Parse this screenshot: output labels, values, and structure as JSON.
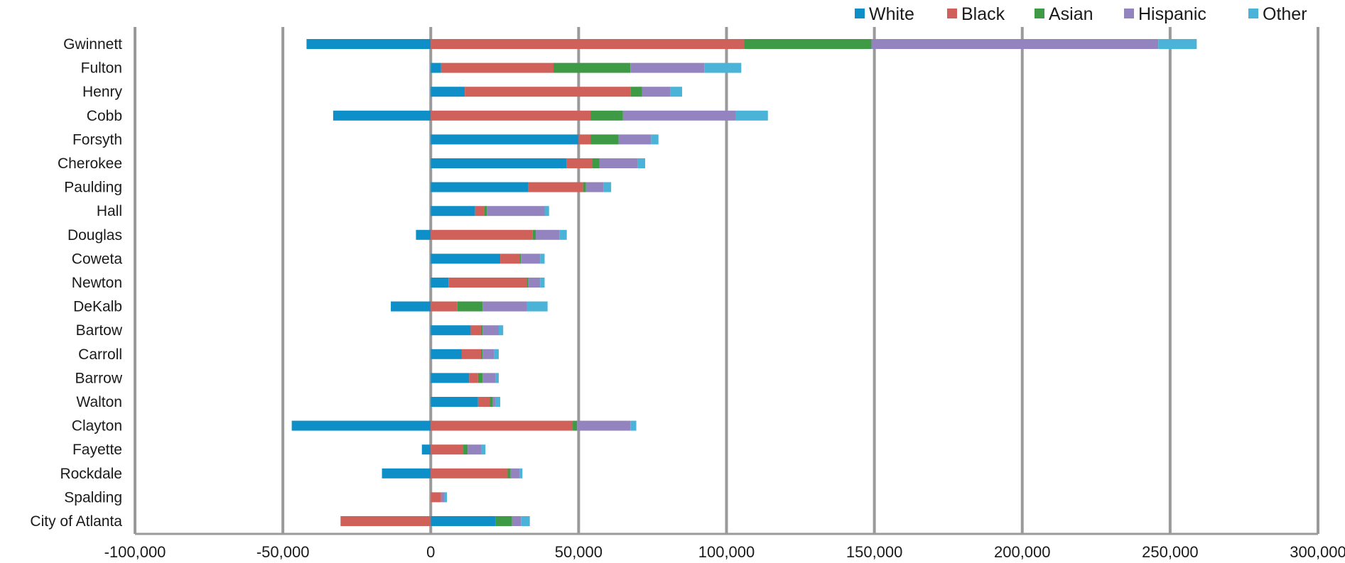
{
  "chart_data": {
    "type": "bar",
    "orientation": "horizontal",
    "stacked": true,
    "title": "",
    "xlabel": "",
    "ylabel": "",
    "xlim": [
      -100000,
      300000
    ],
    "x_ticks": [
      -100000,
      -50000,
      0,
      50000,
      100000,
      150000,
      200000,
      250000,
      300000
    ],
    "x_tick_labels": [
      "-100,000",
      "-50,000",
      "0",
      "50,000",
      "100,000",
      "150,000",
      "200,000",
      "250,000",
      "300,000"
    ],
    "grid": true,
    "legend_position": "top-right",
    "categories": [
      "Gwinnett",
      "Fulton",
      "Henry",
      "Cobb",
      "Forsyth",
      "Cherokee",
      "Paulding",
      "Hall",
      "Douglas",
      "Coweta",
      "Newton",
      "DeKalb",
      "Bartow",
      "Carroll",
      "Barrow",
      "Walton",
      "Clayton",
      "Fayette",
      "Rockdale",
      "Spalding",
      "City of Atlanta"
    ],
    "series": [
      {
        "name": "White",
        "color": "#0e8fc7",
        "values": [
          -42000,
          3500,
          11500,
          -33000,
          50000,
          46000,
          33000,
          15000,
          -5000,
          23500,
          6000,
          -13500,
          13500,
          10500,
          13000,
          16000,
          -47000,
          -3000,
          -16500,
          0,
          22000
        ]
      },
      {
        "name": "Black",
        "color": "#d0605a",
        "values": [
          106000,
          38000,
          56000,
          54000,
          4000,
          8500,
          18500,
          3000,
          34500,
          6500,
          26500,
          9000,
          3500,
          6500,
          3000,
          4000,
          48000,
          11000,
          26000,
          3500,
          -30500
        ]
      },
      {
        "name": "Asian",
        "color": "#3e9a45",
        "values": [
          43000,
          26000,
          4000,
          11000,
          9500,
          2500,
          1000,
          1000,
          1000,
          500,
          500,
          8500,
          500,
          500,
          1500,
          1000,
          1500,
          1500,
          1000,
          0,
          5500
        ]
      },
      {
        "name": "Hispanic",
        "color": "#9383be",
        "values": [
          97000,
          25000,
          9500,
          38000,
          11000,
          13000,
          6000,
          19500,
          8000,
          6500,
          4000,
          15000,
          5500,
          4000,
          4500,
          1000,
          18000,
          4500,
          3000,
          1000,
          3000
        ]
      },
      {
        "name": "Other",
        "color": "#4cb3d8",
        "values": [
          13000,
          12500,
          4000,
          11000,
          2500,
          2500,
          2500,
          1500,
          2500,
          1500,
          1500,
          7000,
          1500,
          1500,
          1000,
          1500,
          2000,
          1500,
          1000,
          1000,
          3000
        ]
      }
    ]
  }
}
